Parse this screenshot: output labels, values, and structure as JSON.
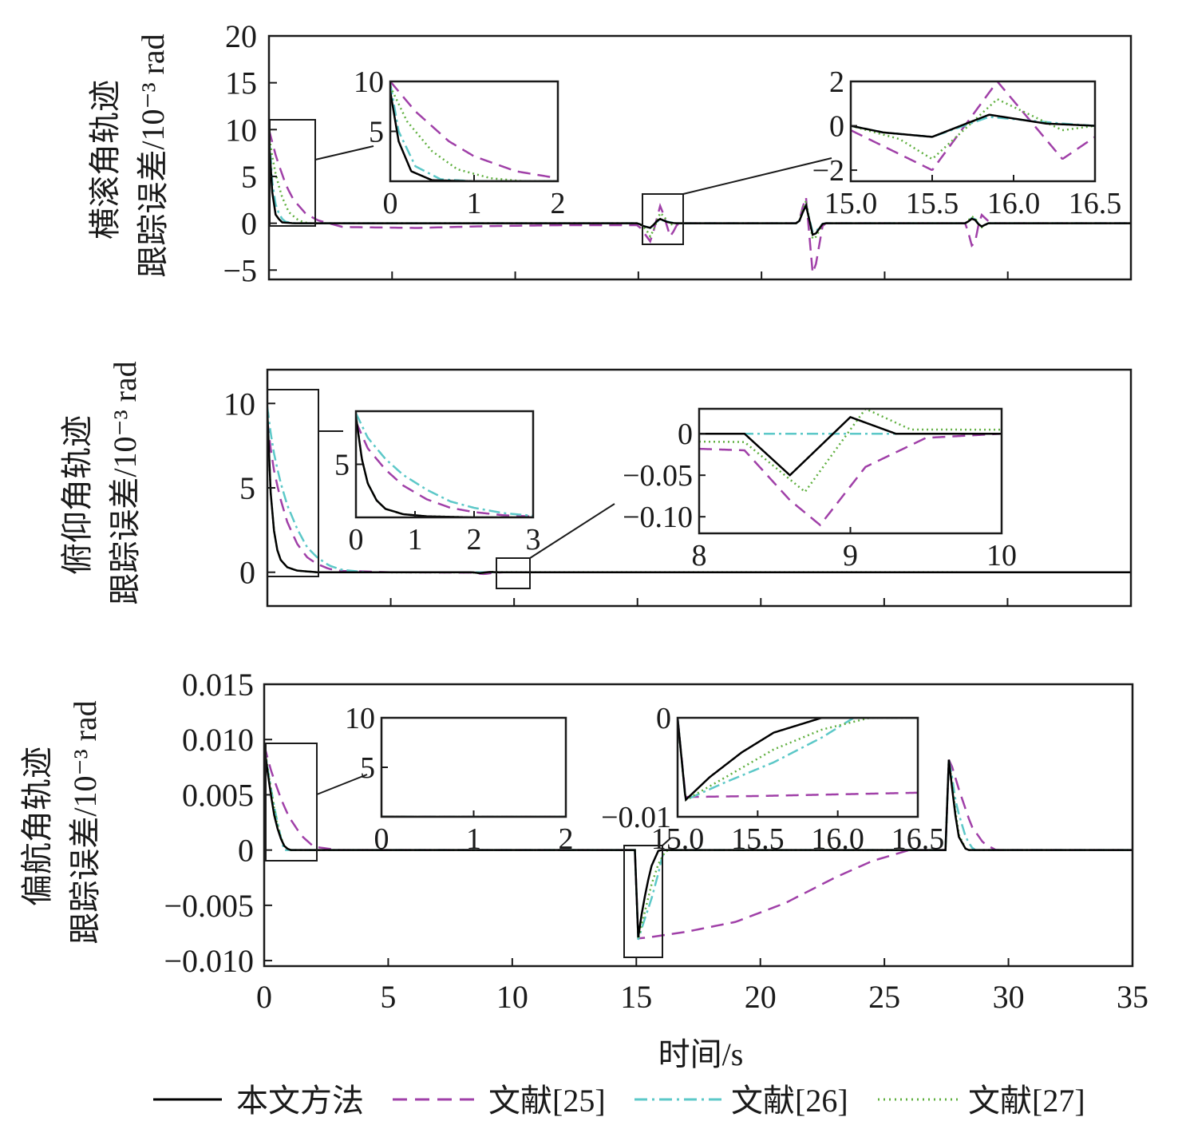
{
  "colors": {
    "ours": "#000000",
    "ref25": "#a040a8",
    "ref26": "#5cc8c8",
    "ref27": "#60b040"
  },
  "xlabel": "时间/s",
  "legend": [
    "本文方法",
    "文献[25]",
    "文献[26]",
    "文献[27]"
  ],
  "chart_data": [
    {
      "type": "line",
      "ylabel_line1": "横滚角轨迹",
      "ylabel_line2": "跟踪误差/10⁻³ rad",
      "xlim": [
        0,
        35
      ],
      "ylim": [
        -6,
        20
      ],
      "yticks": [
        "20",
        "15",
        "10",
        "5",
        "0",
        "−5"
      ],
      "series": [
        {
          "name": "本文方法",
          "values": [
            [
              0,
              9
            ],
            [
              0.1,
              4
            ],
            [
              0.25,
              1
            ],
            [
              0.5,
              0.1
            ],
            [
              1,
              0
            ],
            [
              15,
              0
            ],
            [
              15.2,
              -0.3
            ],
            [
              15.5,
              -0.5
            ],
            [
              15.85,
              0.5
            ],
            [
              16.2,
              0.1
            ],
            [
              16.5,
              0
            ],
            [
              21.5,
              0
            ],
            [
              21.8,
              2
            ],
            [
              22.1,
              -1.5
            ],
            [
              22.5,
              0
            ],
            [
              28.3,
              0
            ],
            [
              28.6,
              0.6
            ],
            [
              28.9,
              -0.4
            ],
            [
              29.2,
              0
            ],
            [
              35,
              0
            ]
          ]
        },
        {
          "name": "文献[25]",
          "values": [
            [
              0,
              10
            ],
            [
              0.3,
              7
            ],
            [
              0.7,
              4
            ],
            [
              1,
              2.5
            ],
            [
              1.5,
              1
            ],
            [
              2,
              0.3
            ],
            [
              3,
              -0.4
            ],
            [
              6,
              -0.5
            ],
            [
              9,
              -0.3
            ],
            [
              12,
              -0.2
            ],
            [
              15,
              -0.2
            ],
            [
              15.5,
              -2
            ],
            [
              15.9,
              2
            ],
            [
              16.3,
              -1.5
            ],
            [
              16.6,
              0
            ],
            [
              21.5,
              0
            ],
            [
              21.8,
              3
            ],
            [
              22.1,
              -6
            ],
            [
              22.5,
              0
            ],
            [
              28.3,
              0
            ],
            [
              28.6,
              -3
            ],
            [
              28.9,
              1
            ],
            [
              29.3,
              0
            ],
            [
              35,
              0
            ]
          ]
        },
        {
          "name": "文献[26]",
          "values": [
            [
              0,
              9.8
            ],
            [
              0.1,
              5
            ],
            [
              0.3,
              1.5
            ],
            [
              0.6,
              0.2
            ],
            [
              1,
              0
            ],
            [
              15,
              0
            ],
            [
              15.2,
              -0.3
            ],
            [
              15.5,
              -0.5
            ],
            [
              15.85,
              0.4
            ],
            [
              16.3,
              0.1
            ],
            [
              16.5,
              0
            ],
            [
              21.5,
              0
            ],
            [
              21.8,
              2
            ],
            [
              22.1,
              -1.2
            ],
            [
              22.5,
              0
            ],
            [
              28.3,
              0
            ],
            [
              28.6,
              0.7
            ],
            [
              28.9,
              -0.4
            ],
            [
              29.2,
              0
            ],
            [
              35,
              0
            ]
          ]
        },
        {
          "name": "文献[27]",
          "values": [
            [
              0,
              9.5
            ],
            [
              0.2,
              6
            ],
            [
              0.5,
              3
            ],
            [
              0.8,
              1.2
            ],
            [
              1.2,
              0.3
            ],
            [
              1.6,
              0
            ],
            [
              15,
              0
            ],
            [
              15.3,
              -0.6
            ],
            [
              15.5,
              -1.5
            ],
            [
              15.9,
              1.2
            ],
            [
              16.3,
              -0.2
            ],
            [
              16.5,
              0
            ],
            [
              21.5,
              0
            ],
            [
              21.8,
              2.5
            ],
            [
              22.1,
              -2
            ],
            [
              22.5,
              0
            ],
            [
              28.3,
              0
            ],
            [
              28.6,
              0.9
            ],
            [
              28.9,
              -0.5
            ],
            [
              29.2,
              0
            ],
            [
              35,
              0
            ]
          ]
        }
      ],
      "insets": [
        {
          "xlim": [
            0,
            2
          ],
          "ylim": [
            0,
            10
          ],
          "xticks": [
            "0",
            "1",
            "2"
          ],
          "yticks": [
            "10",
            "5"
          ]
        },
        {
          "xlim": [
            15.0,
            16.5
          ],
          "ylim": [
            -2.5,
            2
          ],
          "xticks": [
            "15.0",
            "15.5",
            "16.0",
            "16.5"
          ],
          "yticks": [
            "2",
            "0",
            "−2"
          ]
        }
      ]
    },
    {
      "type": "line",
      "ylabel_line1": "俯仰角轨迹",
      "ylabel_line2": "跟踪误差/10⁻³ rad",
      "xlim": [
        0,
        35
      ],
      "ylim": [
        -2,
        12
      ],
      "yticks": [
        "10",
        "5",
        "0"
      ],
      "series": [
        {
          "name": "本文方法",
          "values": [
            [
              0,
              9.5
            ],
            [
              0.1,
              5.5
            ],
            [
              0.2,
              3.2
            ],
            [
              0.35,
              1.6
            ],
            [
              0.5,
              0.8
            ],
            [
              0.8,
              0.3
            ],
            [
              1.2,
              0.1
            ],
            [
              2,
              0
            ],
            [
              8.3,
              0
            ],
            [
              8.6,
              -0.05
            ],
            [
              9,
              0.02
            ],
            [
              9.3,
              0
            ],
            [
              35,
              0
            ]
          ]
        },
        {
          "name": "文献[25]",
          "values": [
            [
              0,
              9
            ],
            [
              0.2,
              6.5
            ],
            [
              0.5,
              4.5
            ],
            [
              0.8,
              3
            ],
            [
              1.2,
              1.7
            ],
            [
              1.6,
              0.9
            ],
            [
              2,
              0.5
            ],
            [
              2.5,
              0.2
            ],
            [
              3,
              0.08
            ],
            [
              5,
              0
            ],
            [
              8.3,
              -0.02
            ],
            [
              8.6,
              -0.08
            ],
            [
              8.8,
              -0.11
            ],
            [
              9.1,
              -0.04
            ],
            [
              9.5,
              -0.005
            ],
            [
              10,
              0
            ],
            [
              35,
              0
            ]
          ]
        },
        {
          "name": "文献[26]",
          "values": [
            [
              0,
              9.8
            ],
            [
              0.2,
              7.5
            ],
            [
              0.5,
              5.5
            ],
            [
              0.8,
              4
            ],
            [
              1.2,
              2.6
            ],
            [
              1.6,
              1.5
            ],
            [
              2,
              0.9
            ],
            [
              2.5,
              0.4
            ],
            [
              3,
              0.15
            ],
            [
              4,
              0
            ],
            [
              35,
              0
            ]
          ]
        },
        {
          "name": "文献[27]",
          "values": [
            [
              0,
              9.5
            ],
            [
              0.1,
              5.5
            ],
            [
              0.2,
              3.2
            ],
            [
              0.35,
              1.6
            ],
            [
              0.5,
              0.8
            ],
            [
              0.8,
              0.3
            ],
            [
              1.2,
              0.1
            ],
            [
              2,
              0
            ],
            [
              8.3,
              -0.01
            ],
            [
              8.7,
              -0.07
            ],
            [
              9.1,
              0.03
            ],
            [
              9.4,
              0.005
            ],
            [
              35,
              0
            ]
          ]
        }
      ],
      "insets": [
        {
          "xlim": [
            0,
            3
          ],
          "ylim": [
            0,
            10
          ],
          "xticks": [
            "0",
            "1",
            "2",
            "3"
          ],
          "yticks": [
            "5"
          ]
        },
        {
          "xlim": [
            8,
            10
          ],
          "ylim": [
            -0.12,
            0.03
          ],
          "xticks": [
            "8",
            "9",
            "10"
          ],
          "yticks": [
            "0",
            "−0.05",
            "−0.10"
          ]
        }
      ]
    },
    {
      "type": "line",
      "ylabel_line1": "偏航角轨迹",
      "ylabel_line2": "跟踪误差/10⁻³ rad",
      "xlim": [
        0,
        35
      ],
      "xticks": [
        "0",
        "5",
        "10",
        "15",
        "20",
        "25",
        "30",
        "35"
      ],
      "ylim": [
        -0.0105,
        0.015
      ],
      "yticks": [
        "0.015",
        "0.010",
        "0.005",
        "0",
        "−0.005",
        "−0.010"
      ],
      "series": [
        {
          "name": "本文方法",
          "values": [
            [
              0,
              0.0095
            ],
            [
              0.2,
              0.006
            ],
            [
              0.4,
              0.0032
            ],
            [
              0.6,
              0.0014
            ],
            [
              0.8,
              0.0004
            ],
            [
              1,
              0
            ],
            [
              15,
              0
            ],
            [
              15.05,
              -0.0083
            ],
            [
              15.2,
              -0.006
            ],
            [
              15.4,
              -0.0035
            ],
            [
              15.6,
              -0.0015
            ],
            [
              15.9,
              0
            ],
            [
              27.5,
              0
            ],
            [
              27.6,
              0.0085
            ],
            [
              27.8,
              0.004
            ],
            [
              28,
              0.0012
            ],
            [
              28.3,
              0
            ],
            [
              35,
              0
            ]
          ]
        },
        {
          "name": "文献[25]",
          "values": [
            [
              0,
              0.0095
            ],
            [
              0.3,
              0.007
            ],
            [
              0.7,
              0.0045
            ],
            [
              1,
              0.003
            ],
            [
              1.5,
              0.0013
            ],
            [
              2,
              0.0003
            ],
            [
              3,
              0
            ],
            [
              15,
              0
            ],
            [
              15.05,
              -0.008
            ],
            [
              15.5,
              -0.0079
            ],
            [
              17,
              -0.0074
            ],
            [
              19,
              -0.0065
            ],
            [
              21,
              -0.0048
            ],
            [
              23,
              -0.0025
            ],
            [
              24.5,
              -0.001
            ],
            [
              26,
              0
            ],
            [
              27.5,
              0
            ],
            [
              27.6,
              0.0085
            ],
            [
              28,
              0.0055
            ],
            [
              28.5,
              0.0022
            ],
            [
              29,
              0.0006
            ],
            [
              29.5,
              0
            ],
            [
              35,
              0
            ]
          ]
        },
        {
          "name": "文献[26]",
          "values": [
            [
              0,
              0.0095
            ],
            [
              0.2,
              0.0065
            ],
            [
              0.4,
              0.004
            ],
            [
              0.6,
              0.0018
            ],
            [
              0.8,
              0
            ],
            [
              15,
              0
            ],
            [
              15.05,
              -0.0083
            ],
            [
              15.3,
              -0.0065
            ],
            [
              15.6,
              -0.0045
            ],
            [
              15.9,
              -0.002
            ],
            [
              16.1,
              0
            ],
            [
              27.5,
              0
            ],
            [
              27.6,
              0.0085
            ],
            [
              27.9,
              0.004
            ],
            [
              28.3,
              0.001
            ],
            [
              28.6,
              0
            ],
            [
              35,
              0
            ]
          ]
        },
        {
          "name": "文献[27]",
          "values": [
            [
              0,
              0.0095
            ],
            [
              0.2,
              0.0065
            ],
            [
              0.4,
              0.0038
            ],
            [
              0.6,
              0.0016
            ],
            [
              0.8,
              0.0004
            ],
            [
              1,
              0
            ],
            [
              15,
              0
            ],
            [
              15.05,
              -0.0083
            ],
            [
              15.3,
              -0.006
            ],
            [
              15.6,
              -0.0032
            ],
            [
              15.9,
              -0.0012
            ],
            [
              16.2,
              0
            ],
            [
              27.5,
              0
            ],
            [
              27.6,
              0.0085
            ],
            [
              27.8,
              0.0045
            ],
            [
              28,
              0.0014
            ],
            [
              28.3,
              0
            ],
            [
              35,
              0
            ]
          ]
        }
      ],
      "insets": [
        {
          "xlim": [
            0,
            2
          ],
          "ylim": [
            0,
            10
          ],
          "xticks": [
            "0",
            "1",
            "2"
          ],
          "yticks": [
            "10",
            "5"
          ]
        },
        {
          "xlim": [
            15.0,
            16.5
          ],
          "ylim": [
            -0.01,
            0
          ],
          "xticks": [
            "15.0",
            "15.5",
            "16.0",
            "16.5"
          ],
          "yticks": [
            "0",
            "−0.01"
          ]
        }
      ]
    }
  ]
}
